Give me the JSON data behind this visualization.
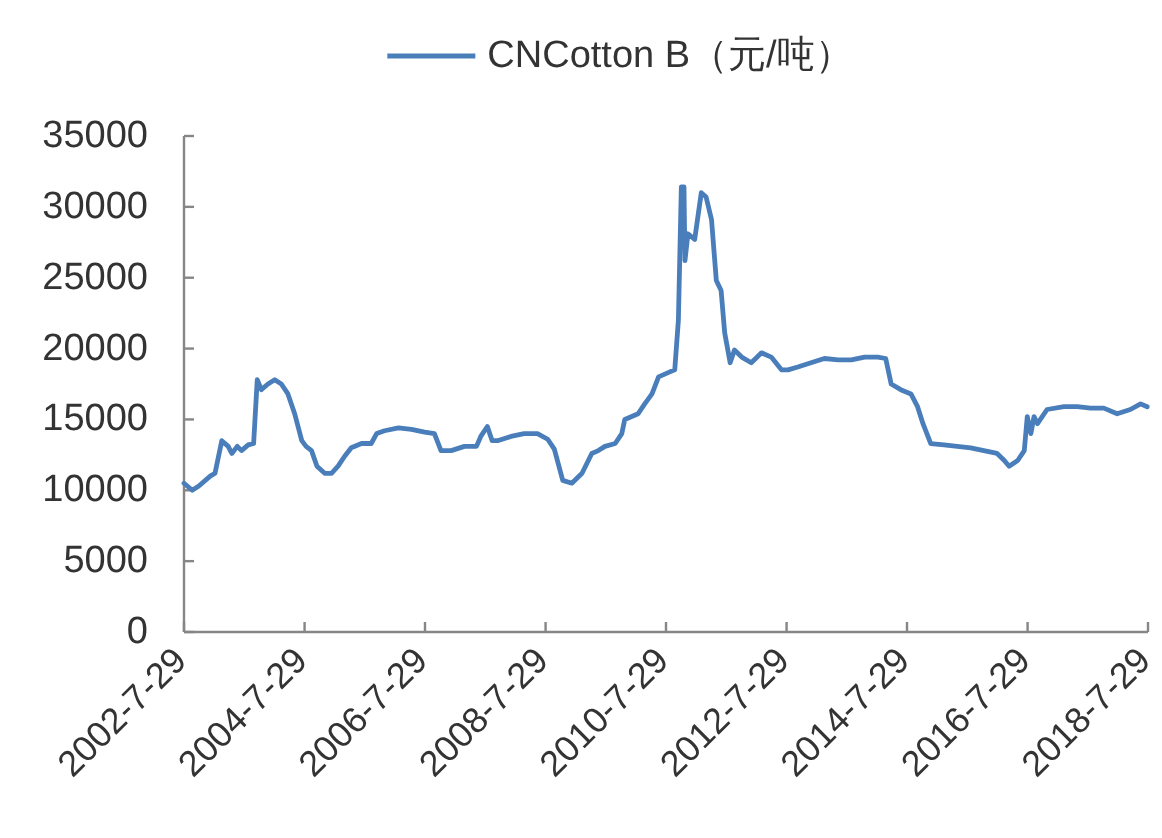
{
  "chart_data": {
    "type": "line",
    "legend": "top",
    "line_style": "solid",
    "x": [
      "2002-07-29",
      "2002-09-17",
      "2002-10-27",
      "2003-01-04",
      "2003-02-02",
      "2003-03-15",
      "2003-04-23",
      "2003-05-15",
      "2003-06-17",
      "2003-07-13",
      "2003-08-22",
      "2003-09-24",
      "2003-10-16",
      "2003-11-10",
      "2003-12-20",
      "2004-01-30",
      "2004-03-10",
      "2004-04-19",
      "2004-05-30",
      "2004-07-12",
      "2004-08-07",
      "2004-09-09",
      "2004-10-12",
      "2004-11-28",
      "2005-01-08",
      "2005-02-17",
      "2005-03-29",
      "2005-05-08",
      "2005-07-09",
      "2005-09-06",
      "2005-10-09",
      "2005-11-26",
      "2006-02-18",
      "2006-05-08",
      "2006-07-27",
      "2006-09-24",
      "2006-11-03",
      "2007-01-04",
      "2007-03-25",
      "2007-06-06",
      "2007-07-02",
      "2007-08-11",
      "2007-09-09",
      "2007-10-12",
      "2008-01-01",
      "2008-03-21",
      "2008-06-10",
      "2008-08-11",
      "2008-09-20",
      "2008-11-10",
      "2009-01-04",
      "2009-03-07",
      "2009-05-05",
      "2009-06-14",
      "2009-07-24",
      "2009-09-24",
      "2009-11-03",
      "2009-11-21",
      "2010-02-10",
      "2010-03-22",
      "2010-05-05",
      "2010-06-14",
      "2010-08-11",
      "2010-09-20",
      "2010-10-12",
      "2010-10-30",
      "2010-11-15",
      "2010-11-21",
      "2010-12-09",
      "2011-01-19",
      "2011-02-28",
      "2011-03-29",
      "2011-05-01",
      "2011-05-30",
      "2011-06-28",
      "2011-07-20",
      "2011-08-22",
      "2011-09-17",
      "2011-10-31",
      "2011-12-28",
      "2012-02-28",
      "2012-04-27",
      "2012-06-28",
      "2012-08-07",
      "2012-10-05",
      "2012-12-24",
      "2013-03-15",
      "2013-06-07",
      "2013-08-26",
      "2013-11-14",
      "2014-02-02",
      "2014-03-22",
      "2014-04-24",
      "2014-06-21",
      "2014-08-22",
      "2014-10-01",
      "2014-11-03",
      "2014-12-20",
      "2015-03-10",
      "2015-05-30",
      "2015-08-19",
      "2015-11-07",
      "2016-01-26",
      "2016-03-10",
      "2016-04-08",
      "2016-05-30",
      "2016-07-09",
      "2016-07-27",
      "2016-08-18",
      "2016-09-06",
      "2016-09-27",
      "2016-11-24",
      "2017-03-07",
      "2017-05-26",
      "2017-08-15",
      "2017-11-03",
      "2018-01-23",
      "2018-04-13",
      "2018-06-14",
      "2018-07-24"
    ],
    "series": [
      {
        "name": "CNCotton B（元/吨）",
        "color": "#4a7ebb",
        "values": [
          10500,
          10000,
          10300,
          11000,
          11200,
          13500,
          13100,
          12600,
          13100,
          12800,
          13200,
          13300,
          17800,
          17100,
          17500,
          17800,
          17500,
          16800,
          15400,
          13500,
          13100,
          12800,
          11700,
          11200,
          11200,
          11700,
          12400,
          13000,
          13300,
          13300,
          14000,
          14200,
          14400,
          14300,
          14100,
          14000,
          12800,
          12800,
          13100,
          13100,
          13800,
          14500,
          13500,
          13500,
          13800,
          14000,
          14000,
          13600,
          12900,
          10700,
          10500,
          11200,
          12600,
          12800,
          13100,
          13300,
          14000,
          15000,
          15400,
          16100,
          16800,
          18000,
          18300,
          18500,
          22000,
          31400,
          31400,
          26200,
          28100,
          27700,
          31000,
          30700,
          29100,
          24800,
          24100,
          21100,
          19000,
          19900,
          19400,
          19000,
          19700,
          19400,
          18500,
          18500,
          18700,
          19000,
          19300,
          19200,
          19200,
          19400,
          19400,
          19300,
          17500,
          17100,
          16800,
          15900,
          14700,
          13300,
          13200,
          13100,
          13000,
          12800,
          12600,
          12100,
          11700,
          12100,
          12800,
          15200,
          14000,
          15200,
          14700,
          15700,
          15900,
          15900,
          15800,
          15800,
          15400,
          15700,
          16100,
          15900
        ]
      }
    ],
    "xlim": [
      "2002-07-29",
      "2018-07-29"
    ],
    "xticks": [
      {
        "value": "2002-07-29",
        "label": "2002-7-29"
      },
      {
        "value": "2004-07-29",
        "label": "2004-7-29"
      },
      {
        "value": "2006-07-29",
        "label": "2006-7-29"
      },
      {
        "value": "2008-07-29",
        "label": "2008-7-29"
      },
      {
        "value": "2010-07-29",
        "label": "2010-7-29"
      },
      {
        "value": "2012-07-29",
        "label": "2012-7-29"
      },
      {
        "value": "2014-07-29",
        "label": "2014-7-29"
      },
      {
        "value": "2016-07-29",
        "label": "2016-7-29"
      },
      {
        "value": "2018-07-29",
        "label": "2018-7-29"
      }
    ],
    "ylim": [
      0,
      35000
    ],
    "yticks": [
      0,
      5000,
      10000,
      15000,
      20000,
      25000,
      30000,
      35000
    ]
  }
}
